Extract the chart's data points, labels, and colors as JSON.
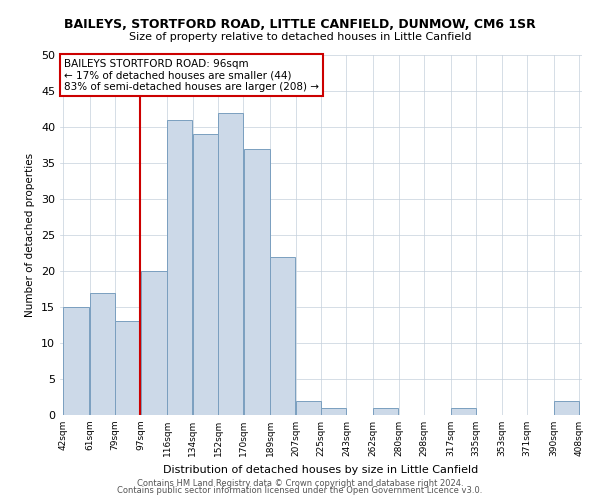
{
  "title": "BAILEYS, STORTFORD ROAD, LITTLE CANFIELD, DUNMOW, CM6 1SR",
  "subtitle": "Size of property relative to detached houses in Little Canfield",
  "xlabel": "Distribution of detached houses by size in Little Canfield",
  "ylabel": "Number of detached properties",
  "bar_color": "#ccd9e8",
  "bar_edge_color": "#7a9fbf",
  "vline_x": 97,
  "vline_color": "#cc0000",
  "annotation_title": "BAILEYS STORTFORD ROAD: 96sqm",
  "annotation_line2": "← 17% of detached houses are smaller (44)",
  "annotation_line3": "83% of semi-detached houses are larger (208) →",
  "annotation_box_color": "#cc0000",
  "bin_edges": [
    42,
    61,
    79,
    97,
    116,
    134,
    152,
    170,
    189,
    207,
    225,
    243,
    262,
    280,
    298,
    317,
    335,
    353,
    371,
    390,
    408
  ],
  "bin_labels": [
    "42sqm",
    "61sqm",
    "79sqm",
    "97sqm",
    "116sqm",
    "134sqm",
    "152sqm",
    "170sqm",
    "189sqm",
    "207sqm",
    "225sqm",
    "243sqm",
    "262sqm",
    "280sqm",
    "298sqm",
    "317sqm",
    "335sqm",
    "353sqm",
    "371sqm",
    "390sqm",
    "408sqm"
  ],
  "counts": [
    15,
    17,
    13,
    20,
    41,
    39,
    42,
    37,
    22,
    2,
    1,
    0,
    1,
    0,
    0,
    1,
    0,
    0,
    0,
    2
  ],
  "ylim": [
    0,
    50
  ],
  "footer1": "Contains HM Land Registry data © Crown copyright and database right 2024.",
  "footer2": "Contains public sector information licensed under the Open Government Licence v3.0.",
  "background_color": "#ffffff",
  "grid_color": "#c5d0dc"
}
